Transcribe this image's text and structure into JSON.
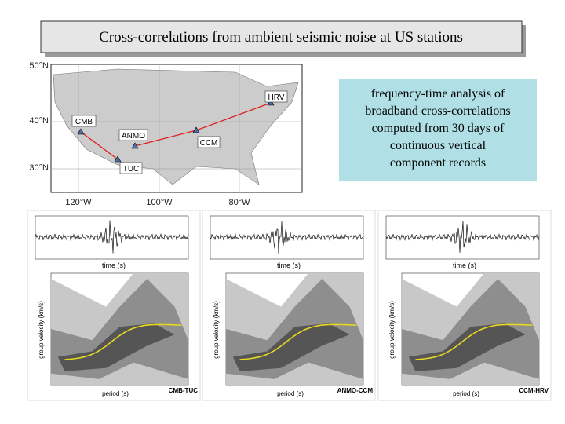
{
  "title": "Cross-correlations from ambient seismic noise at US stations",
  "map": {
    "lat_labels": [
      "50°N",
      "40°N",
      "30°N"
    ],
    "lon_labels": [
      "120°W",
      "100°W",
      "80°W"
    ],
    "stations": [
      "CMB",
      "ANMO",
      "TUC",
      "CCM",
      "HRV"
    ]
  },
  "note": {
    "lines": [
      "frequency-time analysis of",
      "broadband cross-correlations",
      "computed from 30 days of",
      "continuous vertical",
      "component records"
    ]
  },
  "panels": [
    {
      "time_label": "time (s)",
      "velocity_label": "group velocity (km/s)",
      "period_label": "period (s)",
      "name": "CMB-TUC"
    },
    {
      "time_label": "time (s)",
      "velocity_label": "group velocity (km/s)",
      "period_label": "period (s)",
      "name": "ANMO-CCM"
    },
    {
      "time_label": "time (s)",
      "velocity_label": "group velocity (km/s)",
      "period_label": "period (s)",
      "name": "CCM-HRV"
    }
  ]
}
